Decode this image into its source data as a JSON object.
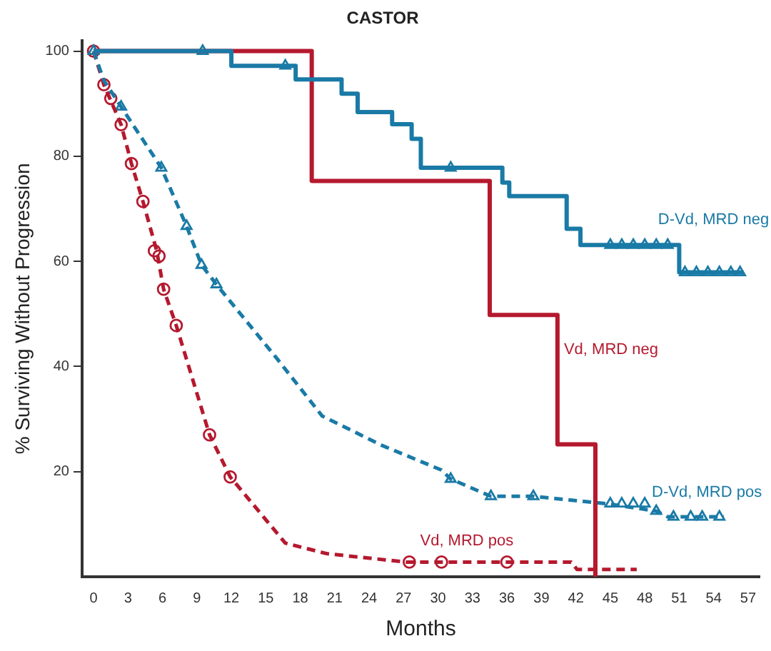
{
  "chart_data": {
    "type": "line",
    "title": "CASTOR",
    "xlabel": "Months",
    "ylabel": "% Surviving Without Progression",
    "xlim": [
      -1,
      58
    ],
    "xticks": [
      0,
      3,
      6,
      9,
      12,
      15,
      18,
      21,
      24,
      27,
      30,
      33,
      36,
      39,
      42,
      45,
      48,
      51,
      54,
      57
    ],
    "ylim": [
      0,
      102
    ],
    "yticks": [
      20,
      40,
      60,
      80,
      100
    ],
    "grid": false,
    "legend": false,
    "series": [
      {
        "name": "D-Vd, MRD neg",
        "type": "step",
        "color": "#1a7aa6",
        "line_style": "solid",
        "x": [
          0,
          12,
          17.6,
          21.6,
          23,
          26,
          27.7,
          28.5,
          35.6,
          36.2,
          41.2,
          42.4,
          51,
          56.6
        ],
        "values": [
          100,
          97.2,
          94.6,
          91.9,
          88.4,
          86.1,
          83.3,
          77.8,
          75,
          72.4,
          66.2,
          63.1,
          57.9,
          57.9
        ]
      },
      {
        "name": "Vd, MRD neg",
        "type": "step",
        "color": "#b5192e",
        "line_style": "solid",
        "x": [
          0,
          19,
          34.5,
          40.4,
          43.7
        ],
        "values": [
          100,
          75.3,
          49.8,
          25.2,
          0
        ]
      },
      {
        "name": "D-Vd, MRD pos",
        "type": "line",
        "color": "#1a7aa6",
        "line_style": "dashed",
        "x": [
          0,
          0.9,
          2.4,
          5.9,
          8.1,
          9.4,
          10.7,
          15.9,
          19.9,
          25.1,
          30.3,
          31.1,
          34.6,
          38.3,
          44.7,
          49,
          50,
          54.9
        ],
        "values": [
          100,
          94.4,
          89.4,
          77.8,
          66.7,
          59.3,
          55.6,
          41.7,
          30.6,
          25,
          20.3,
          18.6,
          15.3,
          15.3,
          13.9,
          12.5,
          11.4,
          11.4
        ]
      },
      {
        "name": "Vd, MRD pos",
        "type": "line",
        "color": "#b5192e",
        "line_style": "dashed",
        "x": [
          0,
          0.9,
          2.4,
          3.3,
          4.3,
          5.5,
          6.1,
          7.2,
          10.1,
          11.9,
          16.7,
          20.3,
          27.2,
          41.6,
          42.1,
          47.3
        ],
        "values": [
          100,
          93.6,
          86,
          78.6,
          71.4,
          62,
          54.7,
          47.8,
          27,
          19,
          6.4,
          4.4,
          2.8,
          2.8,
          1.4,
          1.4
        ]
      },
      {
        "type": "scatter",
        "color": "#1a7aa6",
        "marker": "triangle",
        "x": [
          9.5,
          16.7,
          31.1,
          45,
          46,
          47,
          48,
          49,
          50,
          51.5,
          52.5,
          53.5,
          54.5,
          55.5,
          56.3
        ],
        "values": [
          100,
          97.2,
          77.8,
          63.1,
          63.1,
          63.1,
          63.1,
          63.1,
          63.1,
          57.9,
          57.9,
          57.9,
          57.9,
          57.9,
          57.9
        ]
      },
      {
        "type": "scatter",
        "color": "#1a7aa6",
        "marker": "triangle",
        "x": [
          0,
          2.4,
          5.9,
          8.1,
          9.4,
          10.7,
          31.1,
          34.6,
          38.3,
          45,
          46,
          47,
          48,
          49,
          50.5,
          52,
          53,
          54.5
        ],
        "values": [
          100,
          89.4,
          77.8,
          66.7,
          59.3,
          55.6,
          18.6,
          15.3,
          15.3,
          13.9,
          13.9,
          13.9,
          13.9,
          12.5,
          11.4,
          11.4,
          11.4,
          11.4
        ]
      },
      {
        "type": "scatter",
        "color": "#b5192e",
        "marker": "circle",
        "x": [
          0,
          0.9,
          1.5,
          2.4,
          3.3,
          4.3,
          5.3,
          5.7,
          6.1,
          7.2,
          10.1,
          11.9,
          27.5,
          30.3,
          36
        ],
        "values": [
          100,
          93.6,
          91,
          86,
          78.6,
          71.4,
          62,
          61,
          54.7,
          47.8,
          27,
          19,
          2.8,
          2.8,
          2.8
        ]
      }
    ]
  }
}
